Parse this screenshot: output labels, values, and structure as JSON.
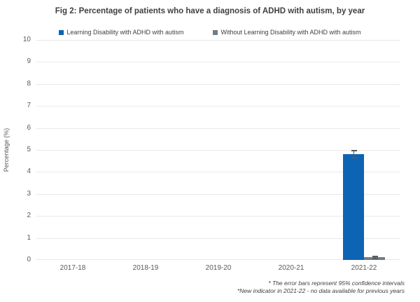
{
  "title": "Fig 2: Percentage of patients who have a diagnosis of ADHD with autism, by year",
  "legend": [
    {
      "label": "Learning Disability with ADHD with autism",
      "color": "#0d64b4"
    },
    {
      "label": "Without Learning Disability with ADHD with autism",
      "color": "#6f7d89"
    }
  ],
  "chart_data": {
    "type": "bar",
    "title": "Fig 2: Percentage of patients who have a diagnosis of ADHD with autism, by year",
    "categories": [
      "2017-18",
      "2018-19",
      "2019-20",
      "2020-21",
      "2021-22"
    ],
    "series": [
      {
        "name": "Learning Disability with ADHD with autism",
        "color": "#0d64b4",
        "values": [
          null,
          null,
          null,
          null,
          4.8
        ],
        "errors": [
          null,
          null,
          null,
          null,
          0.16
        ]
      },
      {
        "name": "Without Learning Disability with ADHD with autism",
        "color": "#6f7d89",
        "values": [
          null,
          null,
          null,
          null,
          0.12
        ],
        "errors": [
          null,
          null,
          null,
          null,
          0.05
        ]
      }
    ],
    "xlabel": "",
    "ylabel": "Percentage (%)",
    "ylim": [
      0,
      10
    ],
    "yticks": [
      0,
      1,
      2,
      3,
      4,
      5,
      6,
      7,
      8,
      9,
      10
    ],
    "grid": true,
    "legend_position": "top",
    "error_bars": "95% confidence intervals"
  },
  "footnotes": {
    "line1": "* The error bars represent 95% confidence intervals",
    "line2": "*New indicator in 2021-22 - no data available for previous years"
  }
}
